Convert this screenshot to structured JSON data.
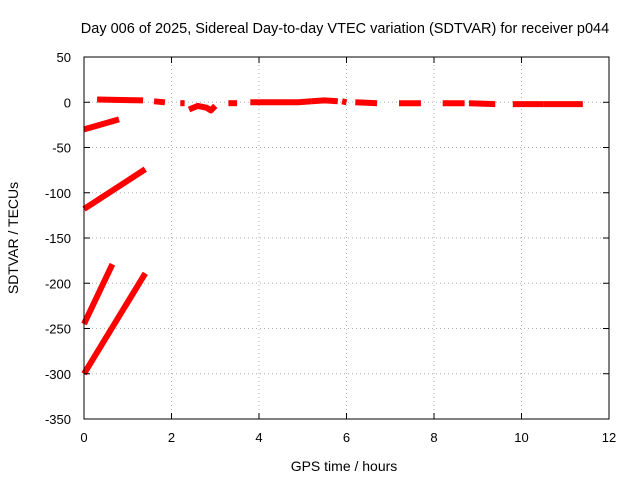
{
  "chart_data": {
    "type": "scatter",
    "title": "Day 006 of 2025, Sidereal Day-to-day VTEC variation (SDTVAR) for receiver p044",
    "xlabel": "GPS time / hours",
    "ylabel": "SDTVAR / TECUs",
    "xlim": [
      0,
      12
    ],
    "ylim": [
      -350,
      50
    ],
    "xticks": [
      0,
      2,
      4,
      6,
      8,
      10,
      12
    ],
    "yticks": [
      50,
      0,
      -50,
      -100,
      -150,
      -200,
      -250,
      -300,
      -350
    ],
    "grid": true,
    "legend": "none",
    "colors": {
      "series": "#ff0000",
      "grid": "#b0b0b0",
      "axis": "#000000"
    },
    "series": [
      {
        "segments": [
          [
            [
              0.3,
              3
            ],
            [
              1.35,
              2
            ]
          ],
          [
            [
              1.6,
              1
            ],
            [
              1.85,
              0
            ]
          ],
          [
            [
              2.2,
              -1
            ],
            [
              2.3,
              -1
            ]
          ],
          [
            [
              2.4,
              -8
            ],
            [
              2.6,
              -4
            ],
            [
              2.8,
              -6
            ],
            [
              2.9,
              -9
            ],
            [
              3.0,
              -4
            ]
          ],
          [
            [
              3.3,
              -1
            ],
            [
              3.5,
              -1
            ]
          ],
          [
            [
              3.8,
              0
            ],
            [
              4.2,
              0
            ],
            [
              4.6,
              0
            ],
            [
              4.9,
              0
            ],
            [
              5.2,
              1
            ]
          ],
          [
            [
              5.2,
              1
            ],
            [
              5.5,
              2
            ],
            [
              5.8,
              1
            ]
          ],
          [
            [
              5.9,
              1
            ],
            [
              6.0,
              0
            ]
          ],
          [
            [
              6.2,
              0
            ],
            [
              6.7,
              -1
            ]
          ],
          [
            [
              7.2,
              -1
            ],
            [
              7.7,
              -1
            ]
          ],
          [
            [
              8.2,
              -1
            ],
            [
              8.7,
              -1
            ]
          ],
          [
            [
              8.8,
              -1
            ],
            [
              9.4,
              -2
            ]
          ],
          [
            [
              9.8,
              -2
            ],
            [
              10.5,
              -2
            ]
          ],
          [
            [
              10.5,
              -2
            ],
            [
              11.4,
              -2
            ]
          ]
        ]
      },
      {
        "segments": [
          [
            [
              0.0,
              -30
            ],
            [
              0.8,
              -19
            ]
          ]
        ]
      },
      {
        "segments": [
          [
            [
              0.0,
              -118
            ],
            [
              1.4,
              -74
            ]
          ]
        ]
      },
      {
        "segments": [
          [
            [
              0.0,
              -245
            ],
            [
              0.65,
              -179
            ]
          ]
        ]
      },
      {
        "segments": [
          [
            [
              0.0,
              -300
            ],
            [
              1.4,
              -189
            ]
          ]
        ]
      }
    ]
  }
}
